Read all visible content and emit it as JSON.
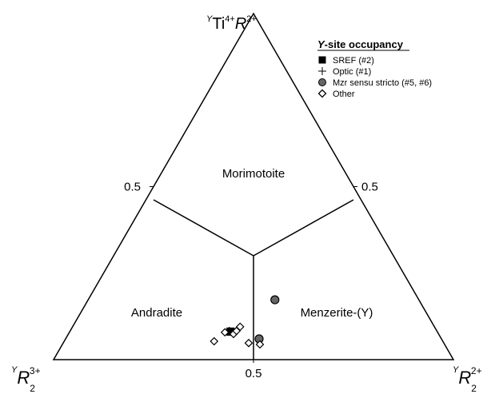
{
  "chart_data": {
    "type": "ternary",
    "vertex_labels": {
      "top": [
        "Y",
        "Ti",
        "4+",
        "R",
        "2+"
      ],
      "left": [
        "Y",
        "R",
        "2",
        "3+"
      ],
      "right": [
        "Y",
        "R",
        "2",
        "2+"
      ]
    },
    "fields": [
      "Morimotoite",
      "Andradite",
      "Menzerite-(Y)"
    ],
    "left_ticks": [
      0.5
    ],
    "right_ticks": [
      0.5
    ],
    "bottom_ticks": [
      0.5
    ],
    "legend_title": [
      "Y",
      "-site occupancy"
    ],
    "legend_position": "upper right",
    "series": [
      {
        "name": "SREF (#2)",
        "marker": "square",
        "color": "#000000",
        "top": [
          0.081
        ],
        "right": [
          0.402
        ],
        "left": [
          0.517
        ]
      },
      {
        "name": "Optic (#1)",
        "marker": "plus",
        "color": "#000000",
        "top": [
          0.083
        ],
        "right": [
          0.398
        ],
        "left": [
          0.519
        ]
      },
      {
        "name": "Mzr sensu stricto (#5, #6)",
        "marker": "circle",
        "color": "#666666",
        "top": [
          0.173,
          0.06
        ],
        "right": [
          0.467,
          0.484
        ],
        "left": [
          0.36,
          0.456
        ]
      },
      {
        "name": "Other",
        "marker": "diamond",
        "color": "#ffffff",
        "top": [
          0.053,
          0.079,
          0.074,
          0.083,
          0.095,
          0.048,
          0.044
        ],
        "right": [
          0.375,
          0.389,
          0.413,
          0.416,
          0.419,
          0.464,
          0.494
        ],
        "left": [
          0.572,
          0.532,
          0.513,
          0.501,
          0.486,
          0.488,
          0.462
        ]
      }
    ]
  }
}
